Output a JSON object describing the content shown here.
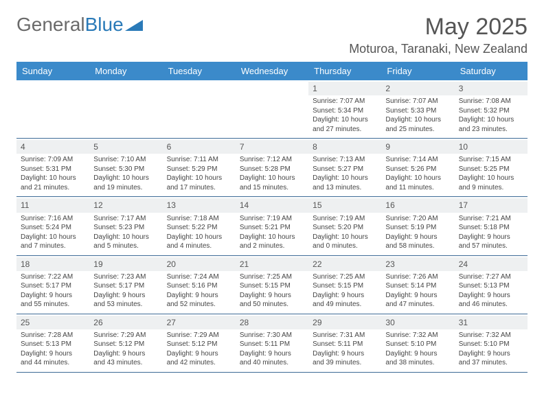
{
  "logo": {
    "part1": "General",
    "part2": "Blue"
  },
  "header": {
    "month_title": "May 2025",
    "location": "Moturoa, Taranaki, New Zealand"
  },
  "colors": {
    "header_bg": "#3b8aca",
    "header_text": "#ffffff",
    "week_border": "#3b6a95",
    "daynum_bg": "#eef0f1",
    "body_text": "#444444",
    "logo_gray": "#6a6a6a",
    "logo_blue": "#2a7ab8"
  },
  "day_labels": [
    "Sunday",
    "Monday",
    "Tuesday",
    "Wednesday",
    "Thursday",
    "Friday",
    "Saturday"
  ],
  "weeks": [
    [
      null,
      null,
      null,
      null,
      {
        "n": "1",
        "sr": "Sunrise: 7:07 AM",
        "ss": "Sunset: 5:34 PM",
        "d1": "Daylight: 10 hours",
        "d2": "and 27 minutes."
      },
      {
        "n": "2",
        "sr": "Sunrise: 7:07 AM",
        "ss": "Sunset: 5:33 PM",
        "d1": "Daylight: 10 hours",
        "d2": "and 25 minutes."
      },
      {
        "n": "3",
        "sr": "Sunrise: 7:08 AM",
        "ss": "Sunset: 5:32 PM",
        "d1": "Daylight: 10 hours",
        "d2": "and 23 minutes."
      }
    ],
    [
      {
        "n": "4",
        "sr": "Sunrise: 7:09 AM",
        "ss": "Sunset: 5:31 PM",
        "d1": "Daylight: 10 hours",
        "d2": "and 21 minutes."
      },
      {
        "n": "5",
        "sr": "Sunrise: 7:10 AM",
        "ss": "Sunset: 5:30 PM",
        "d1": "Daylight: 10 hours",
        "d2": "and 19 minutes."
      },
      {
        "n": "6",
        "sr": "Sunrise: 7:11 AM",
        "ss": "Sunset: 5:29 PM",
        "d1": "Daylight: 10 hours",
        "d2": "and 17 minutes."
      },
      {
        "n": "7",
        "sr": "Sunrise: 7:12 AM",
        "ss": "Sunset: 5:28 PM",
        "d1": "Daylight: 10 hours",
        "d2": "and 15 minutes."
      },
      {
        "n": "8",
        "sr": "Sunrise: 7:13 AM",
        "ss": "Sunset: 5:27 PM",
        "d1": "Daylight: 10 hours",
        "d2": "and 13 minutes."
      },
      {
        "n": "9",
        "sr": "Sunrise: 7:14 AM",
        "ss": "Sunset: 5:26 PM",
        "d1": "Daylight: 10 hours",
        "d2": "and 11 minutes."
      },
      {
        "n": "10",
        "sr": "Sunrise: 7:15 AM",
        "ss": "Sunset: 5:25 PM",
        "d1": "Daylight: 10 hours",
        "d2": "and 9 minutes."
      }
    ],
    [
      {
        "n": "11",
        "sr": "Sunrise: 7:16 AM",
        "ss": "Sunset: 5:24 PM",
        "d1": "Daylight: 10 hours",
        "d2": "and 7 minutes."
      },
      {
        "n": "12",
        "sr": "Sunrise: 7:17 AM",
        "ss": "Sunset: 5:23 PM",
        "d1": "Daylight: 10 hours",
        "d2": "and 5 minutes."
      },
      {
        "n": "13",
        "sr": "Sunrise: 7:18 AM",
        "ss": "Sunset: 5:22 PM",
        "d1": "Daylight: 10 hours",
        "d2": "and 4 minutes."
      },
      {
        "n": "14",
        "sr": "Sunrise: 7:19 AM",
        "ss": "Sunset: 5:21 PM",
        "d1": "Daylight: 10 hours",
        "d2": "and 2 minutes."
      },
      {
        "n": "15",
        "sr": "Sunrise: 7:19 AM",
        "ss": "Sunset: 5:20 PM",
        "d1": "Daylight: 10 hours",
        "d2": "and 0 minutes."
      },
      {
        "n": "16",
        "sr": "Sunrise: 7:20 AM",
        "ss": "Sunset: 5:19 PM",
        "d1": "Daylight: 9 hours",
        "d2": "and 58 minutes."
      },
      {
        "n": "17",
        "sr": "Sunrise: 7:21 AM",
        "ss": "Sunset: 5:18 PM",
        "d1": "Daylight: 9 hours",
        "d2": "and 57 minutes."
      }
    ],
    [
      {
        "n": "18",
        "sr": "Sunrise: 7:22 AM",
        "ss": "Sunset: 5:17 PM",
        "d1": "Daylight: 9 hours",
        "d2": "and 55 minutes."
      },
      {
        "n": "19",
        "sr": "Sunrise: 7:23 AM",
        "ss": "Sunset: 5:17 PM",
        "d1": "Daylight: 9 hours",
        "d2": "and 53 minutes."
      },
      {
        "n": "20",
        "sr": "Sunrise: 7:24 AM",
        "ss": "Sunset: 5:16 PM",
        "d1": "Daylight: 9 hours",
        "d2": "and 52 minutes."
      },
      {
        "n": "21",
        "sr": "Sunrise: 7:25 AM",
        "ss": "Sunset: 5:15 PM",
        "d1": "Daylight: 9 hours",
        "d2": "and 50 minutes."
      },
      {
        "n": "22",
        "sr": "Sunrise: 7:25 AM",
        "ss": "Sunset: 5:15 PM",
        "d1": "Daylight: 9 hours",
        "d2": "and 49 minutes."
      },
      {
        "n": "23",
        "sr": "Sunrise: 7:26 AM",
        "ss": "Sunset: 5:14 PM",
        "d1": "Daylight: 9 hours",
        "d2": "and 47 minutes."
      },
      {
        "n": "24",
        "sr": "Sunrise: 7:27 AM",
        "ss": "Sunset: 5:13 PM",
        "d1": "Daylight: 9 hours",
        "d2": "and 46 minutes."
      }
    ],
    [
      {
        "n": "25",
        "sr": "Sunrise: 7:28 AM",
        "ss": "Sunset: 5:13 PM",
        "d1": "Daylight: 9 hours",
        "d2": "and 44 minutes."
      },
      {
        "n": "26",
        "sr": "Sunrise: 7:29 AM",
        "ss": "Sunset: 5:12 PM",
        "d1": "Daylight: 9 hours",
        "d2": "and 43 minutes."
      },
      {
        "n": "27",
        "sr": "Sunrise: 7:29 AM",
        "ss": "Sunset: 5:12 PM",
        "d1": "Daylight: 9 hours",
        "d2": "and 42 minutes."
      },
      {
        "n": "28",
        "sr": "Sunrise: 7:30 AM",
        "ss": "Sunset: 5:11 PM",
        "d1": "Daylight: 9 hours",
        "d2": "and 40 minutes."
      },
      {
        "n": "29",
        "sr": "Sunrise: 7:31 AM",
        "ss": "Sunset: 5:11 PM",
        "d1": "Daylight: 9 hours",
        "d2": "and 39 minutes."
      },
      {
        "n": "30",
        "sr": "Sunrise: 7:32 AM",
        "ss": "Sunset: 5:10 PM",
        "d1": "Daylight: 9 hours",
        "d2": "and 38 minutes."
      },
      {
        "n": "31",
        "sr": "Sunrise: 7:32 AM",
        "ss": "Sunset: 5:10 PM",
        "d1": "Daylight: 9 hours",
        "d2": "and 37 minutes."
      }
    ]
  ]
}
